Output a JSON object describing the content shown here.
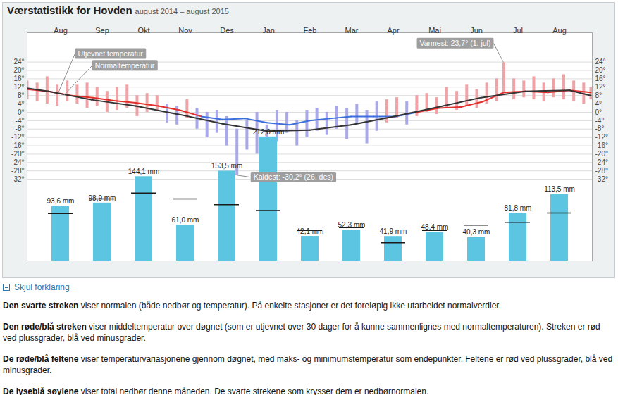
{
  "chart_data": [
    {
      "type": "line",
      "title": "Værstatistikk for Hovden",
      "subtitle": "august 2014 – august 2015",
      "xlim": [
        0,
        396
      ],
      "ylim": [
        -71,
        38
      ],
      "yticks": [
        {
          "value": 24,
          "label": "24°"
        },
        {
          "value": 20,
          "label": "20°"
        },
        {
          "value": 16,
          "label": "16°"
        },
        {
          "value": 12,
          "label": "12°"
        },
        {
          "value": 8,
          "label": "8°"
        },
        {
          "value": 4,
          "label": "4°"
        },
        {
          "value": 0,
          "label": "0°"
        },
        {
          "value": -4,
          "label": "-4°"
        },
        {
          "value": -8,
          "label": "-8°"
        },
        {
          "value": -12,
          "label": "-12°"
        },
        {
          "value": -16,
          "label": "-16°"
        },
        {
          "value": -20,
          "label": "-20°"
        },
        {
          "value": -24,
          "label": "-24°"
        },
        {
          "value": -28,
          "label": "-28°"
        },
        {
          "value": -32,
          "label": "-32°"
        }
      ],
      "grid": true,
      "tick_labels": "y",
      "series": [
        {
          "type": "range",
          "x": [
            0,
            7,
            14,
            21,
            28,
            35,
            42,
            49,
            56,
            63,
            70,
            77,
            84,
            91,
            98,
            105,
            112,
            119,
            126,
            133,
            140,
            147,
            154,
            161,
            168,
            175,
            182,
            189,
            196,
            203,
            210,
            217,
            224,
            231,
            238,
            245,
            252,
            259,
            266,
            273,
            280,
            287,
            294,
            301,
            308,
            315,
            322,
            329,
            334,
            341,
            348,
            355,
            362,
            369,
            376,
            383,
            390,
            395
          ],
          "low": [
            6,
            5,
            4,
            3,
            5,
            4,
            2,
            3,
            0,
            1,
            2,
            -2,
            0,
            1,
            -5,
            -6,
            -3,
            -8,
            -12,
            -10,
            -16,
            -30.2,
            -18,
            -20,
            -24,
            -14,
            -10,
            -16,
            -12,
            -9,
            -11,
            -8,
            -13,
            -6,
            -15,
            -9,
            -5,
            -3,
            -6,
            -2,
            0,
            -1,
            2,
            1,
            3,
            2,
            4,
            5,
            9,
            6,
            7,
            6,
            5,
            7,
            6,
            5,
            4,
            6
          ],
          "high": [
            15,
            14,
            17,
            13,
            15,
            13,
            14,
            12,
            10,
            12,
            13,
            8,
            9,
            8,
            4,
            3,
            6,
            2,
            0,
            1,
            -2,
            -8,
            -4,
            0,
            -6,
            1,
            0,
            -4,
            1,
            2,
            0,
            3,
            2,
            4,
            1,
            5,
            6,
            7,
            5,
            8,
            9,
            7,
            12,
            10,
            13,
            11,
            14,
            16,
            23.7,
            16,
            15,
            17,
            14,
            16,
            18,
            15,
            14,
            12
          ],
          "colors": [
            "#f0a3a6",
            "#f0a3a6",
            "#f0a3a6",
            "#f0a3a6",
            "#f0a3a6",
            "#f0a3a6",
            "#f0a3a6",
            "#f0a3a6",
            "#f0a3a6",
            "#f0a3a6",
            "#f0a3a6",
            "#f0a3a6",
            "#f0a3a6",
            "#f0a3a6",
            "#a9a8e8",
            "#a9a8e8",
            "#f0a3a6",
            "#a9a8e8",
            "#a9a8e8",
            "#a9a8e8",
            "#a9a8e8",
            "#a9a8e8",
            "#a9a8e8",
            "#a9a8e8",
            "#a9a8e8",
            "#a9a8e8",
            "#a9a8e8",
            "#a9a8e8",
            "#a9a8e8",
            "#a9a8e8",
            "#a9a8e8",
            "#a9a8e8",
            "#a9a8e8",
            "#a9a8e8",
            "#a9a8e8",
            "#a9a8e8",
            "#f0a3a6",
            "#f0a3a6",
            "#a9a8e8",
            "#f0a3a6",
            "#f0a3a6",
            "#f0a3a6",
            "#f0a3a6",
            "#f0a3a6",
            "#f0a3a6",
            "#f0a3a6",
            "#f0a3a6",
            "#f0a3a6",
            "#f0a3a6",
            "#f0a3a6",
            "#f0a3a6",
            "#f0a3a6",
            "#f0a3a6",
            "#f0a3a6",
            "#f0a3a6",
            "#f0a3a6",
            "#f0a3a6",
            "#f0a3a6"
          ]
        },
        {
          "type": "line",
          "x": [
            0,
            15,
            31,
            46,
            61,
            76,
            92,
            107,
            122,
            137,
            153,
            168,
            184,
            198,
            212,
            227,
            243,
            258,
            273,
            288,
            304,
            319,
            334,
            349,
            365,
            380,
            395
          ],
          "values": [
            11,
            10,
            8,
            7,
            5.5,
            4.5,
            3,
            1,
            -2,
            -3.5,
            -3,
            -5,
            -6,
            -4,
            -3,
            -2,
            -2,
            -2,
            0,
            2,
            2.5,
            5,
            9.5,
            10,
            9.5,
            10.5,
            9.5
          ],
          "colors": [
            "#e4302c",
            "#e4302c",
            "#e4302c",
            "#e4302c",
            "#e4302c",
            "#e4302c",
            "#e4302c",
            "#e4302c",
            "#3d6fdc",
            "#3d6fdc",
            "#3d6fdc",
            "#3d6fdc",
            "#3d6fdc",
            "#3d6fdc",
            "#3d6fdc",
            "#3d6fdc",
            "#3d6fdc",
            "#3d6fdc",
            "#e4302c",
            "#e4302c",
            "#e4302c",
            "#e4302c",
            "#e4302c",
            "#e4302c",
            "#e4302c",
            "#e4302c",
            "#e4302c"
          ]
        },
        {
          "type": "line",
          "x": [
            0,
            15,
            45,
            76,
            106,
            137,
            168,
            198,
            227,
            257,
            288,
            318,
            349,
            380,
            395
          ],
          "values": [
            11.5,
            10,
            6,
            3,
            -1,
            -5.5,
            -9,
            -8.5,
            -6,
            -2,
            2.5,
            7,
            10,
            10.5,
            8
          ],
          "color": "#333333"
        }
      ],
      "annotations": [
        {
          "text": "Utjevnet temperatur",
          "x": 22,
          "y": 9
        },
        {
          "text": "Normaltemperatur",
          "x": 26,
          "y": 8
        },
        {
          "text": "Varmest: 23,7° (1. jul)",
          "x": 334,
          "y": 23.7
        },
        {
          "text": "Kaldest: -30,2° (26. des)",
          "x": 147,
          "y": -30.2
        }
      ]
    },
    {
      "type": "bar",
      "categories": [
        "Aug",
        "Sep",
        "Okt",
        "Nov",
        "Des",
        "Jan",
        "Feb",
        "Mar",
        "Apr",
        "Mai",
        "Jun",
        "Jul",
        "Aug"
      ],
      "values": [
        93.6,
        98.9,
        144.1,
        61.0,
        153.5,
        212.0,
        42.1,
        52.3,
        41.9,
        48.4,
        40.3,
        81.8,
        113.5
      ],
      "value_labels": [
        "93,6 mm",
        "98,9 mm",
        "144,1 mm",
        "61,0 mm",
        "153,5 mm",
        "212,0 mm",
        "42,1 mm",
        "52,3 mm",
        "41,9 mm",
        "48,4 mm",
        "40,3 mm",
        "81,8 mm",
        "113,5 mm"
      ],
      "data_labels": true,
      "color": "#5cc6e2",
      "normal": {
        "values": [
          81,
          106,
          116,
          106,
          96,
          86,
          52,
          57,
          31,
          52,
          61,
          66,
          82
        ],
        "color": "#1a1a1a"
      },
      "ylim": [
        0,
        390
      ],
      "yticks": [],
      "grid": false,
      "tick_labels": "x"
    }
  ],
  "explanation": {
    "toggle": "Skjul forklaring",
    "items": [
      {
        "term": "Den svarte streken",
        "text": "viser normalen (både nedbør og temperatur). På enkelte stasjoner er det foreløpig ikke utarbeidet normalverdier."
      },
      {
        "term": "Den røde/blå streken",
        "text": "viser middeltemperatur over døgnet (som er utjevnet over 30 dager for å kunne sammenlignes med normaltemperaturen). Streken er rød ved plussgrader, blå ved minusgrader."
      },
      {
        "term": "De røde/blå feltene",
        "text": "viser temperaturvariasjonene gjennom døgnet, med maks- og minimumstemperatur som endepunkter. Feltene er rød ved plussgrader, blå ved minusgrader."
      },
      {
        "term": "De lyseblå søylene",
        "text": "viser total nedbør denne måneden. De svarte strekene som krysser dem er nedbørnormalen."
      }
    ]
  }
}
